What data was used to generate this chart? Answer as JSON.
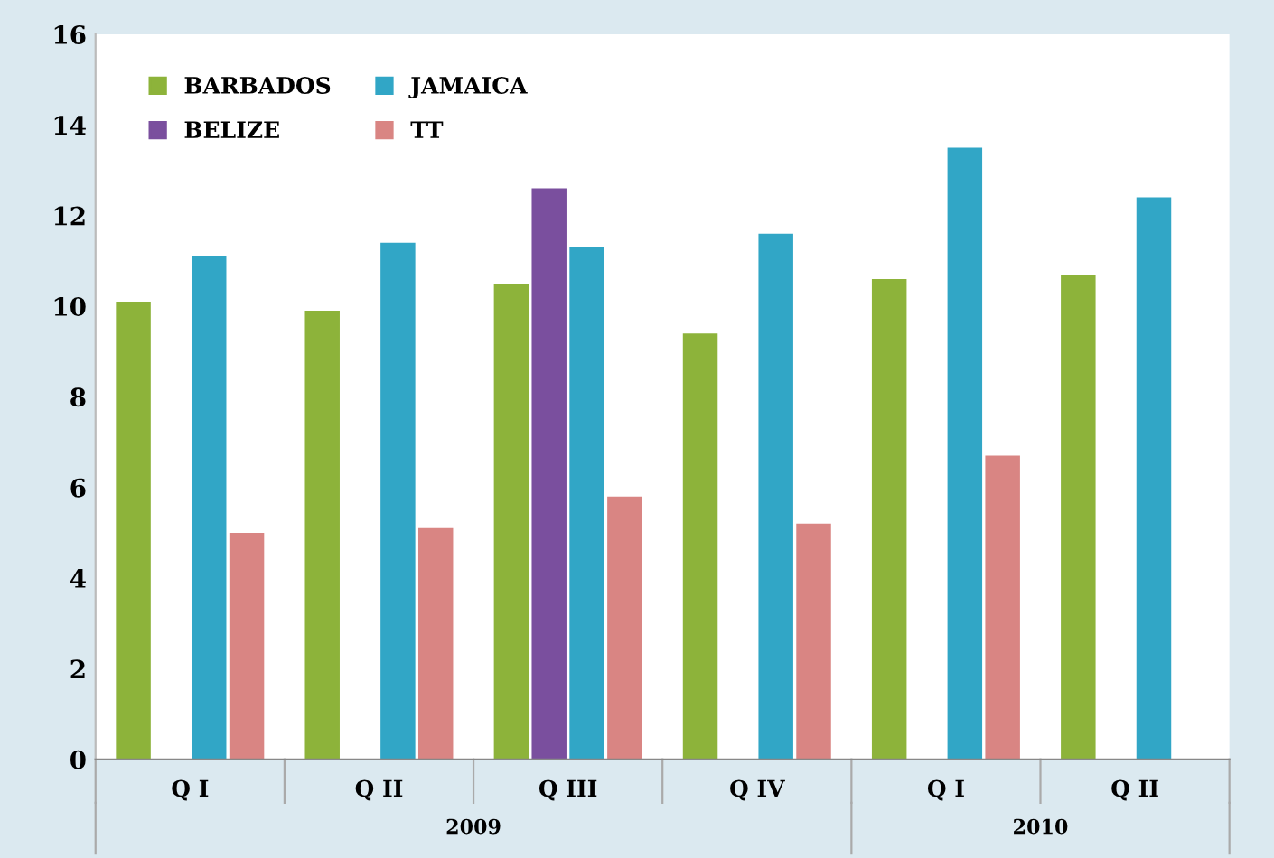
{
  "chart_data": {
    "type": "bar",
    "categories": [
      "Q I",
      "Q II",
      "Q III",
      "Q IV",
      "Q I",
      "Q II"
    ],
    "series": [
      {
        "name": "BARBADOS",
        "color": "#8db33a",
        "values": [
          10.1,
          9.9,
          10.5,
          9.4,
          10.6,
          10.7
        ]
      },
      {
        "name": "BELIZE",
        "color": "#7a4f9e",
        "values": [
          null,
          null,
          12.6,
          null,
          null,
          null
        ]
      },
      {
        "name": "JAMAICA",
        "color": "#31a6c6",
        "values": [
          11.1,
          11.4,
          11.3,
          11.6,
          13.5,
          12.4
        ]
      },
      {
        "name": "TT",
        "color": "#d98583",
        "values": [
          5.0,
          5.1,
          5.8,
          5.2,
          6.7,
          null
        ]
      }
    ],
    "annotations": [
      "2009",
      "2010"
    ],
    "ylim": [
      0,
      16
    ],
    "yticks": [
      0,
      2,
      4,
      6,
      8,
      10,
      12,
      14,
      16
    ],
    "grid": false,
    "legend": "top left"
  }
}
